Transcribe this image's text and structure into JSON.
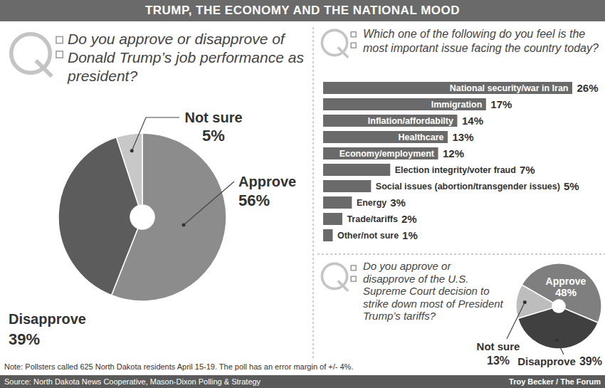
{
  "title": "TRUMP, THE ECONOMY AND THE NATIONAL MOOD",
  "note": "Note: Pollsters called 625 North Dakota residents April 15-19. The poll has an error margin of +/- 4%.",
  "source": "Source: North Dakota News Cooperative, Mason-Dixon Polling & Strategy",
  "credit": "Troy Becker / The Forum",
  "chart_data": [
    {
      "type": "pie",
      "title": "Do you approve or disapprove of Donald Trump’s job performance as president?",
      "categories": [
        "Approve",
        "Disapprove",
        "Not sure"
      ],
      "values": [
        56,
        39,
        5
      ],
      "value_labels": [
        "56%",
        "39%",
        "5%"
      ],
      "colors": [
        "#8c8c8c",
        "#5c5c5c",
        "#c8c8c8"
      ],
      "data_labels": true
    },
    {
      "type": "bar",
      "title": "Which one of the following do you feel is the most important issue facing the country today?",
      "orientation": "horizontal",
      "categories": [
        "National security/war in Iran",
        "Immigration",
        "Inflation/affordabilty",
        "Healthcare",
        "Economy/employment",
        "Election integrity/voter fraud",
        "Social issues (abortion/transgender issues)",
        "Energy",
        "Trade/tariffs",
        "Other/not sure"
      ],
      "values": [
        26,
        17,
        14,
        13,
        12,
        7,
        5,
        3,
        2,
        1
      ],
      "value_labels": [
        "26%",
        "17%",
        "14%",
        "13%",
        "12%",
        "7%",
        "5%",
        "3%",
        "2%",
        "1%"
      ],
      "color": "#6a6a6a",
      "xlim": [
        0,
        26
      ],
      "tick_labels": false,
      "data_labels": true
    },
    {
      "type": "pie",
      "title": "Do you approve or disapprove of the U.S. Supreme Court decision to strike down most of President Trump’s tariffs?",
      "categories": [
        "Approve",
        "Disapprove",
        "Not sure"
      ],
      "values": [
        48,
        39,
        13
      ],
      "value_labels": [
        "48%",
        "39%",
        "13%"
      ],
      "colors": [
        "#7f7f7f",
        "#404040",
        "#bdbdbd"
      ],
      "data_labels": true
    }
  ]
}
